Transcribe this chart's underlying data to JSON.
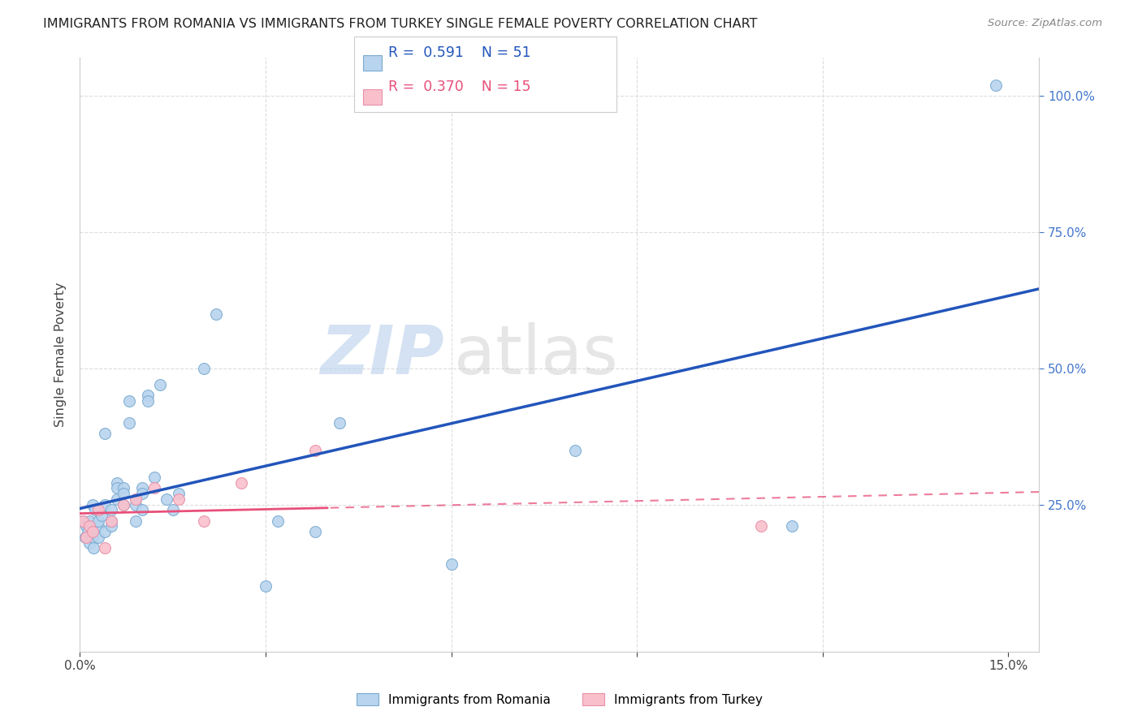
{
  "title": "IMMIGRANTS FROM ROMANIA VS IMMIGRANTS FROM TURKEY SINGLE FEMALE POVERTY CORRELATION CHART",
  "source": "Source: ZipAtlas.com",
  "xlim": [
    0.0,
    0.155
  ],
  "ylim": [
    -0.02,
    1.07
  ],
  "romania_color": "#B8D4EE",
  "turkey_color": "#F9C0CC",
  "romania_edge": "#7AAAD0",
  "turkey_edge": "#E890A8",
  "regression_romania_color": "#2255BB",
  "regression_turkey_color": "#E8507A",
  "legend_r_romania": "R = 0.591",
  "legend_n_romania": "N = 51",
  "legend_r_turkey": "R = 0.370",
  "legend_n_turkey": "N = 15",
  "romania_x": [
    0.0005,
    0.0008,
    0.001,
    0.0012,
    0.0015,
    0.0015,
    0.002,
    0.002,
    0.0022,
    0.0025,
    0.003,
    0.003,
    0.003,
    0.0035,
    0.004,
    0.004,
    0.004,
    0.005,
    0.005,
    0.005,
    0.006,
    0.006,
    0.006,
    0.007,
    0.007,
    0.007,
    0.008,
    0.008,
    0.009,
    0.009,
    0.009,
    0.01,
    0.01,
    0.01,
    0.011,
    0.011,
    0.012,
    0.013,
    0.014,
    0.015,
    0.016,
    0.02,
    0.022,
    0.03,
    0.032,
    0.038,
    0.042,
    0.06,
    0.08,
    0.115,
    0.148
  ],
  "romania_y": [
    0.22,
    0.19,
    0.21,
    0.2,
    0.22,
    0.18,
    0.25,
    0.19,
    0.17,
    0.24,
    0.21,
    0.22,
    0.19,
    0.23,
    0.38,
    0.25,
    0.2,
    0.24,
    0.21,
    0.22,
    0.29,
    0.28,
    0.26,
    0.25,
    0.28,
    0.27,
    0.4,
    0.44,
    0.26,
    0.25,
    0.22,
    0.28,
    0.27,
    0.24,
    0.45,
    0.44,
    0.3,
    0.47,
    0.26,
    0.24,
    0.27,
    0.5,
    0.6,
    0.1,
    0.22,
    0.2,
    0.4,
    0.14,
    0.35,
    0.21,
    1.02
  ],
  "turkey_x": [
    0.0005,
    0.001,
    0.0015,
    0.002,
    0.003,
    0.004,
    0.005,
    0.007,
    0.009,
    0.012,
    0.016,
    0.02,
    0.026,
    0.038,
    0.11
  ],
  "turkey_y": [
    0.22,
    0.19,
    0.21,
    0.2,
    0.24,
    0.17,
    0.22,
    0.25,
    0.26,
    0.28,
    0.26,
    0.22,
    0.29,
    0.35,
    0.21
  ],
  "grid_color": "#DDDDDD",
  "bg_color": "#FFFFFF",
  "marker_size": 100,
  "xticks": [
    0.0,
    0.03,
    0.06,
    0.09,
    0.12,
    0.15
  ],
  "yticks": [
    0.0,
    0.25,
    0.5,
    0.75,
    1.0
  ],
  "ytick_labels_right": [
    "25.0%",
    "50.0%",
    "75.0%",
    "100.0%"
  ],
  "ylabel": "Single Female Poverty",
  "watermark_zip": "ZIP",
  "watermark_atlas": "atlas"
}
